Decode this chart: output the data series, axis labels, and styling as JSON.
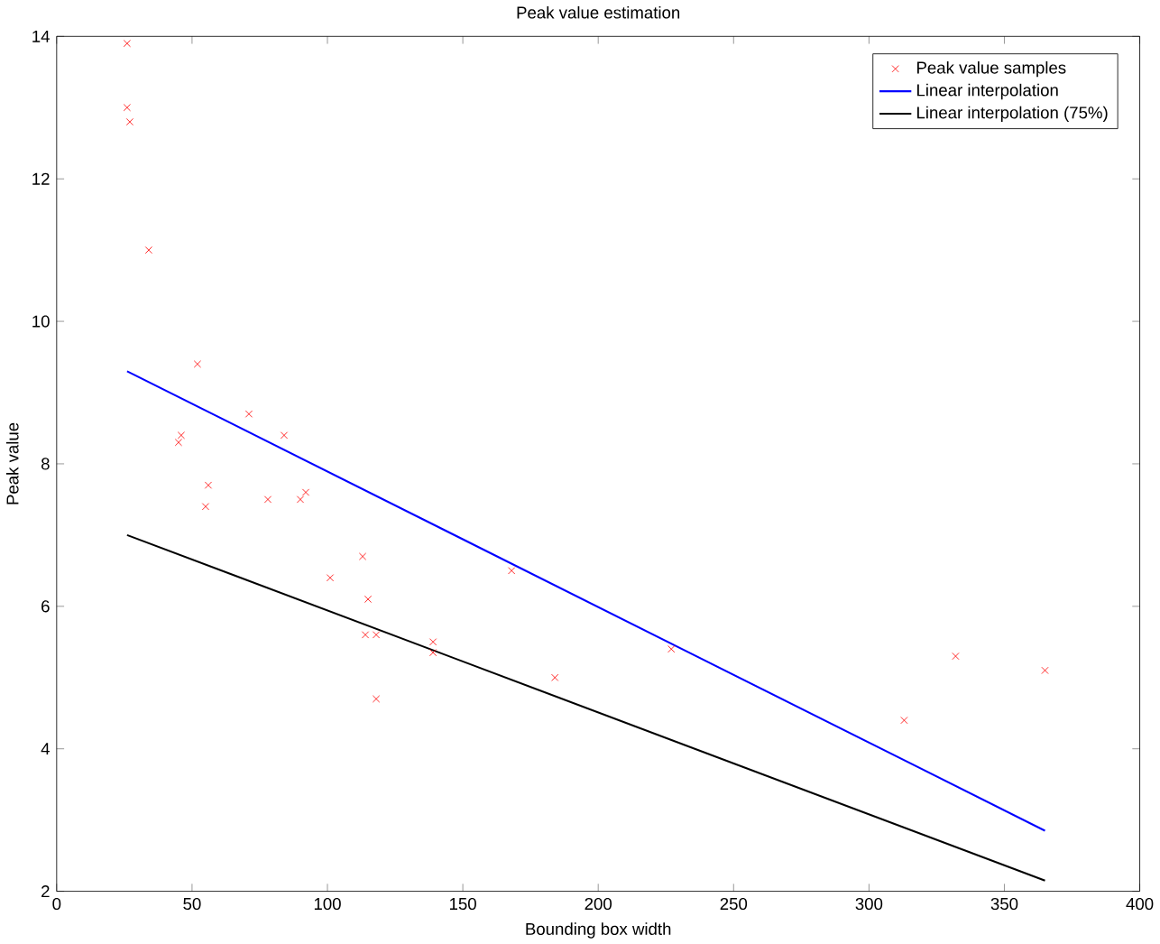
{
  "chart_data": {
    "type": "scatter",
    "title": "Peak value estimation",
    "xlabel": "Bounding box width",
    "ylabel": "Peak value",
    "xlim": [
      0,
      400
    ],
    "xticks": [
      0,
      50,
      100,
      150,
      200,
      250,
      300,
      350,
      400
    ],
    "ylim": [
      2,
      14
    ],
    "yticks": [
      2,
      4,
      6,
      8,
      10,
      12,
      14
    ],
    "grid": false,
    "legend": "top right",
    "series": [
      {
        "name": "Peak value samples",
        "color": "#ff0000",
        "marker": "cross",
        "x": [
          26,
          26,
          27,
          34,
          52,
          45,
          46,
          56,
          55,
          71,
          78,
          84,
          90,
          92,
          101,
          113,
          115,
          114,
          118,
          118,
          139,
          139,
          168,
          184,
          227,
          313,
          332,
          365
        ],
        "values": [
          13.9,
          13.0,
          12.8,
          11.0,
          9.4,
          8.3,
          8.4,
          7.7,
          7.4,
          8.7,
          7.5,
          8.4,
          7.5,
          7.6,
          6.4,
          6.7,
          6.1,
          5.6,
          5.6,
          4.7,
          5.5,
          5.35,
          6.5,
          5.0,
          5.4,
          4.4,
          5.3,
          5.1
        ]
      },
      {
        "name": "Linear interpolation",
        "type": "line",
        "color": "#0000ff",
        "x": [
          26,
          365
        ],
        "values": [
          9.3,
          2.85
        ]
      },
      {
        "name": "Linear interpolation (75%)",
        "type": "line",
        "color": "#000000",
        "x": [
          26,
          365
        ],
        "values": [
          7.0,
          2.15
        ]
      }
    ]
  }
}
